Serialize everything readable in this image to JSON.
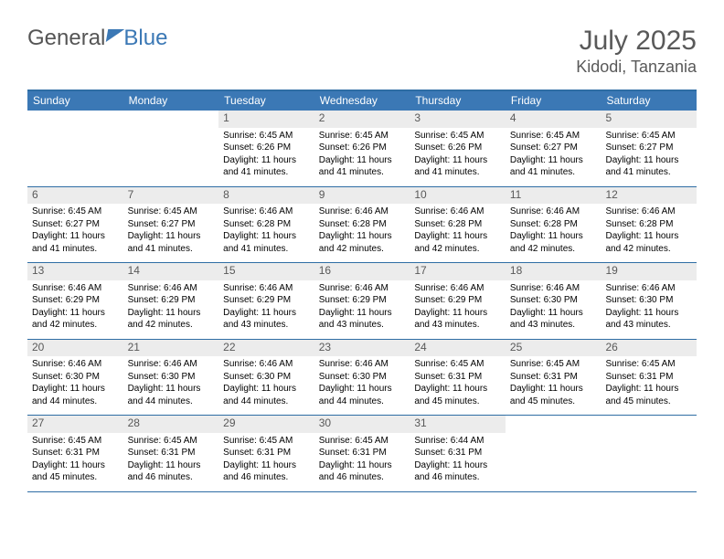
{
  "brand": {
    "part1": "General",
    "part2": "Blue"
  },
  "title": "July 2025",
  "location": "Kidodi, Tanzania",
  "colors": {
    "header_bg": "#3b78b5",
    "border": "#2e6da4",
    "daynum_bg": "#ececec",
    "text_muted": "#595959"
  },
  "typography": {
    "title_fontsize": 30,
    "location_fontsize": 18,
    "dow_fontsize": 12,
    "daynum_fontsize": 12,
    "body_fontsize": 10
  },
  "days_of_week": [
    "Sunday",
    "Monday",
    "Tuesday",
    "Wednesday",
    "Thursday",
    "Friday",
    "Saturday"
  ],
  "weeks": [
    [
      {
        "n": "",
        "sunrise": "",
        "sunset": "",
        "daylight": ""
      },
      {
        "n": "",
        "sunrise": "",
        "sunset": "",
        "daylight": ""
      },
      {
        "n": "1",
        "sunrise": "Sunrise: 6:45 AM",
        "sunset": "Sunset: 6:26 PM",
        "daylight": "Daylight: 11 hours and 41 minutes."
      },
      {
        "n": "2",
        "sunrise": "Sunrise: 6:45 AM",
        "sunset": "Sunset: 6:26 PM",
        "daylight": "Daylight: 11 hours and 41 minutes."
      },
      {
        "n": "3",
        "sunrise": "Sunrise: 6:45 AM",
        "sunset": "Sunset: 6:26 PM",
        "daylight": "Daylight: 11 hours and 41 minutes."
      },
      {
        "n": "4",
        "sunrise": "Sunrise: 6:45 AM",
        "sunset": "Sunset: 6:27 PM",
        "daylight": "Daylight: 11 hours and 41 minutes."
      },
      {
        "n": "5",
        "sunrise": "Sunrise: 6:45 AM",
        "sunset": "Sunset: 6:27 PM",
        "daylight": "Daylight: 11 hours and 41 minutes."
      }
    ],
    [
      {
        "n": "6",
        "sunrise": "Sunrise: 6:45 AM",
        "sunset": "Sunset: 6:27 PM",
        "daylight": "Daylight: 11 hours and 41 minutes."
      },
      {
        "n": "7",
        "sunrise": "Sunrise: 6:45 AM",
        "sunset": "Sunset: 6:27 PM",
        "daylight": "Daylight: 11 hours and 41 minutes."
      },
      {
        "n": "8",
        "sunrise": "Sunrise: 6:46 AM",
        "sunset": "Sunset: 6:28 PM",
        "daylight": "Daylight: 11 hours and 41 minutes."
      },
      {
        "n": "9",
        "sunrise": "Sunrise: 6:46 AM",
        "sunset": "Sunset: 6:28 PM",
        "daylight": "Daylight: 11 hours and 42 minutes."
      },
      {
        "n": "10",
        "sunrise": "Sunrise: 6:46 AM",
        "sunset": "Sunset: 6:28 PM",
        "daylight": "Daylight: 11 hours and 42 minutes."
      },
      {
        "n": "11",
        "sunrise": "Sunrise: 6:46 AM",
        "sunset": "Sunset: 6:28 PM",
        "daylight": "Daylight: 11 hours and 42 minutes."
      },
      {
        "n": "12",
        "sunrise": "Sunrise: 6:46 AM",
        "sunset": "Sunset: 6:28 PM",
        "daylight": "Daylight: 11 hours and 42 minutes."
      }
    ],
    [
      {
        "n": "13",
        "sunrise": "Sunrise: 6:46 AM",
        "sunset": "Sunset: 6:29 PM",
        "daylight": "Daylight: 11 hours and 42 minutes."
      },
      {
        "n": "14",
        "sunrise": "Sunrise: 6:46 AM",
        "sunset": "Sunset: 6:29 PM",
        "daylight": "Daylight: 11 hours and 42 minutes."
      },
      {
        "n": "15",
        "sunrise": "Sunrise: 6:46 AM",
        "sunset": "Sunset: 6:29 PM",
        "daylight": "Daylight: 11 hours and 43 minutes."
      },
      {
        "n": "16",
        "sunrise": "Sunrise: 6:46 AM",
        "sunset": "Sunset: 6:29 PM",
        "daylight": "Daylight: 11 hours and 43 minutes."
      },
      {
        "n": "17",
        "sunrise": "Sunrise: 6:46 AM",
        "sunset": "Sunset: 6:29 PM",
        "daylight": "Daylight: 11 hours and 43 minutes."
      },
      {
        "n": "18",
        "sunrise": "Sunrise: 6:46 AM",
        "sunset": "Sunset: 6:30 PM",
        "daylight": "Daylight: 11 hours and 43 minutes."
      },
      {
        "n": "19",
        "sunrise": "Sunrise: 6:46 AM",
        "sunset": "Sunset: 6:30 PM",
        "daylight": "Daylight: 11 hours and 43 minutes."
      }
    ],
    [
      {
        "n": "20",
        "sunrise": "Sunrise: 6:46 AM",
        "sunset": "Sunset: 6:30 PM",
        "daylight": "Daylight: 11 hours and 44 minutes."
      },
      {
        "n": "21",
        "sunrise": "Sunrise: 6:46 AM",
        "sunset": "Sunset: 6:30 PM",
        "daylight": "Daylight: 11 hours and 44 minutes."
      },
      {
        "n": "22",
        "sunrise": "Sunrise: 6:46 AM",
        "sunset": "Sunset: 6:30 PM",
        "daylight": "Daylight: 11 hours and 44 minutes."
      },
      {
        "n": "23",
        "sunrise": "Sunrise: 6:46 AM",
        "sunset": "Sunset: 6:30 PM",
        "daylight": "Daylight: 11 hours and 44 minutes."
      },
      {
        "n": "24",
        "sunrise": "Sunrise: 6:45 AM",
        "sunset": "Sunset: 6:31 PM",
        "daylight": "Daylight: 11 hours and 45 minutes."
      },
      {
        "n": "25",
        "sunrise": "Sunrise: 6:45 AM",
        "sunset": "Sunset: 6:31 PM",
        "daylight": "Daylight: 11 hours and 45 minutes."
      },
      {
        "n": "26",
        "sunrise": "Sunrise: 6:45 AM",
        "sunset": "Sunset: 6:31 PM",
        "daylight": "Daylight: 11 hours and 45 minutes."
      }
    ],
    [
      {
        "n": "27",
        "sunrise": "Sunrise: 6:45 AM",
        "sunset": "Sunset: 6:31 PM",
        "daylight": "Daylight: 11 hours and 45 minutes."
      },
      {
        "n": "28",
        "sunrise": "Sunrise: 6:45 AM",
        "sunset": "Sunset: 6:31 PM",
        "daylight": "Daylight: 11 hours and 46 minutes."
      },
      {
        "n": "29",
        "sunrise": "Sunrise: 6:45 AM",
        "sunset": "Sunset: 6:31 PM",
        "daylight": "Daylight: 11 hours and 46 minutes."
      },
      {
        "n": "30",
        "sunrise": "Sunrise: 6:45 AM",
        "sunset": "Sunset: 6:31 PM",
        "daylight": "Daylight: 11 hours and 46 minutes."
      },
      {
        "n": "31",
        "sunrise": "Sunrise: 6:44 AM",
        "sunset": "Sunset: 6:31 PM",
        "daylight": "Daylight: 11 hours and 46 minutes."
      },
      {
        "n": "",
        "sunrise": "",
        "sunset": "",
        "daylight": ""
      },
      {
        "n": "",
        "sunrise": "",
        "sunset": "",
        "daylight": ""
      }
    ]
  ]
}
